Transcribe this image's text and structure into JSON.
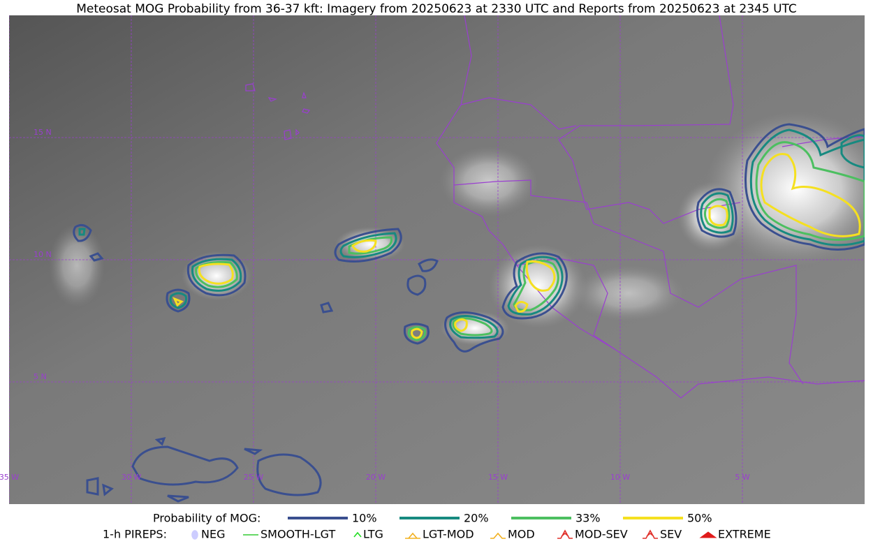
{
  "title": "Meteosat MOG Probability from 36-37 kft: Imagery from 20250623 at 2330 UTC and Reports from 20250623 at 2345 UTC",
  "map": {
    "lat_labels": [
      "15 N",
      "10 N",
      "5 N"
    ],
    "lon_labels": [
      "35 W",
      "30 W",
      "25 W",
      "20 W",
      "15 W",
      "10 W",
      "5 W"
    ]
  },
  "legend": {
    "probability": {
      "title": "Probability of MOG:",
      "items": [
        {
          "label": "10%",
          "color": "#3a4f8f"
        },
        {
          "label": "20%",
          "color": "#178a80"
        },
        {
          "label": "33%",
          "color": "#4cbf60"
        },
        {
          "label": "50%",
          "color": "#f5e020"
        }
      ]
    },
    "pireps": {
      "title": "1-h PIREPS:",
      "items": [
        {
          "label": "NEG",
          "color": "#b8b8ff"
        },
        {
          "label": "SMOOTH-LGT",
          "color": "#33cc33"
        },
        {
          "label": "LTG",
          "color": "#22dd22"
        },
        {
          "label": "LGT-MOD",
          "color": "#f2b01e"
        },
        {
          "label": "MOD",
          "color": "#f2b01e"
        },
        {
          "label": "MOD-SEV",
          "color": "#e0302a"
        },
        {
          "label": "SEV",
          "color": "#e0302a"
        },
        {
          "label": "EXTREME",
          "color": "#e01a1a"
        }
      ]
    }
  }
}
